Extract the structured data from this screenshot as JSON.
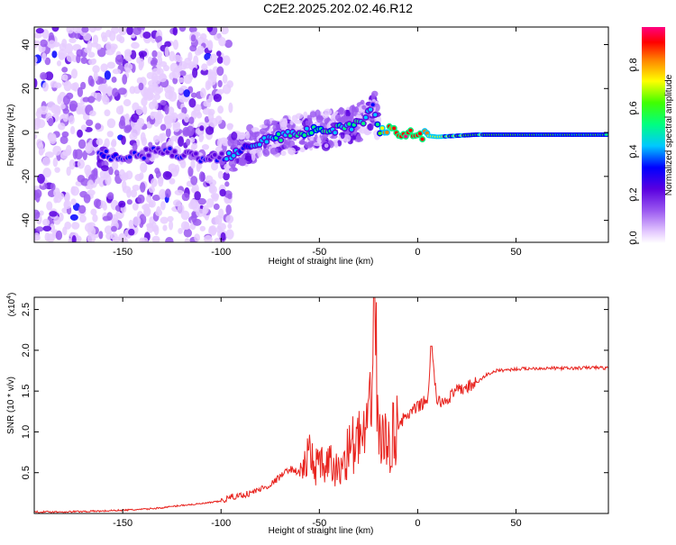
{
  "title": "C2E2.2025.202.02.46.R12",
  "colors": {
    "snr_line": "#e8241f",
    "axis": "#000000",
    "background": "#ffffff"
  },
  "colorbar": {
    "label": "Normalized spectral amplitude",
    "ticks": [
      "0.0",
      "0.2",
      "0.4",
      "0.6",
      "0.8"
    ],
    "tick_values": [
      0.0,
      0.2,
      0.4,
      0.6,
      0.8
    ],
    "range": [
      0,
      1
    ],
    "colormap": [
      "#ffffff",
      "#e6ccff",
      "#9b59f0",
      "#5a00e0",
      "#0000ff",
      "#00c8ff",
      "#00ff80",
      "#40ff00",
      "#ffff00",
      "#ff8000",
      "#ff0000",
      "#ff0080"
    ]
  },
  "chart_data": [
    {
      "type": "heatmap",
      "xlabel": "Height of straight line (km)",
      "ylabel": "Frequency (Hz)",
      "xlim": [
        -195,
        97
      ],
      "ylim": [
        -50,
        48
      ],
      "x_ticks": [
        -150,
        -100,
        -50,
        0,
        50
      ],
      "x_tick_labels": [
        "-150",
        "-100",
        "-50",
        "0",
        "50"
      ],
      "y_ticks": [
        -40,
        -20,
        0,
        20,
        40
      ],
      "y_tick_labels": [
        "-40",
        "-20",
        "0",
        "20",
        "40"
      ],
      "ridge": {
        "description_values": "peak frequency track (data units) vs height",
        "x": [
          -160,
          -150,
          -140,
          -130,
          -120,
          -110,
          -100,
          -95,
          -90,
          -80,
          -70,
          -60,
          -50,
          -40,
          -30,
          -25,
          -22,
          -20,
          -15,
          -10,
          -5,
          0,
          10,
          30,
          50,
          70,
          97
        ],
        "y": [
          -10,
          -12,
          -10,
          -8,
          -10,
          -12,
          -11,
          -10,
          -7,
          -4,
          -2,
          0,
          1,
          2,
          4,
          8,
          12,
          1,
          1,
          0,
          0,
          -1,
          -2,
          -1,
          -1,
          -1,
          -1
        ],
        "amplitude": [
          0.35,
          0.35,
          0.3,
          0.3,
          0.3,
          0.3,
          0.3,
          0.5,
          0.4,
          0.45,
          0.5,
          0.5,
          0.55,
          0.5,
          0.5,
          0.45,
          0.4,
          0.6,
          0.85,
          0.9,
          0.95,
          0.9,
          0.7,
          0.65,
          0.6,
          0.6,
          0.6
        ]
      }
    },
    {
      "type": "line",
      "xlabel": "Height of straight line (km)",
      "ylabel": "SNR (10 * v/v)",
      "y_multiplier_label": "(x10",
      "y_multiplier_exp": "4",
      "xlim": [
        -195,
        97
      ],
      "ylim": [
        0,
        2.65
      ],
      "x_ticks": [
        -150,
        -100,
        -50,
        0,
        50
      ],
      "x_tick_labels": [
        "-150",
        "-100",
        "-50",
        "0",
        "50"
      ],
      "y_ticks": [
        0.5,
        1.0,
        1.5,
        2.0,
        2.5
      ],
      "y_tick_labels": [
        "0.5",
        "1.0",
        "1.5",
        "2.0",
        "2.5"
      ],
      "series": [
        {
          "color": "#e8241f",
          "x": [
            -195,
            -180,
            -160,
            -140,
            -130,
            -120,
            -110,
            -100,
            -95,
            -90,
            -85,
            -80,
            -75,
            -70,
            -65,
            -60,
            -55,
            -50,
            -45,
            -40,
            -35,
            -30,
            -25,
            -22,
            -20,
            -15,
            -10,
            -5,
            0,
            5,
            7,
            10,
            15,
            20,
            25,
            30,
            35,
            40,
            50,
            60,
            70,
            80,
            90,
            97
          ],
          "y": [
            0.02,
            0.02,
            0.03,
            0.05,
            0.07,
            0.1,
            0.12,
            0.15,
            0.2,
            0.22,
            0.25,
            0.3,
            0.35,
            0.45,
            0.55,
            0.5,
            0.7,
            0.55,
            0.6,
            0.5,
            0.8,
            0.9,
            0.95,
            2.6,
            1.0,
            0.8,
            1.1,
            1.2,
            1.3,
            1.4,
            2.0,
            1.35,
            1.4,
            1.5,
            1.55,
            1.6,
            1.7,
            1.75,
            1.77,
            1.78,
            1.78,
            1.78,
            1.79,
            1.78
          ]
        }
      ]
    }
  ]
}
